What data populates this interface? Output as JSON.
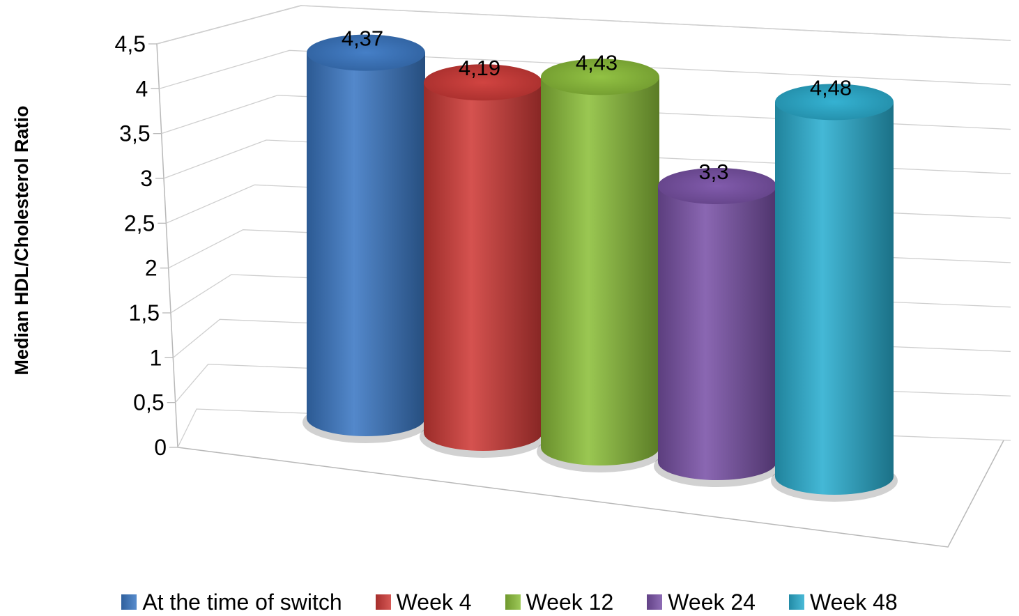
{
  "chart_data": {
    "type": "bar",
    "style": "3d-cylinder",
    "categories": [
      "At the time of switch",
      "Week 4",
      "Week 12",
      "Week 24",
      "Week 48"
    ],
    "values": [
      4.37,
      4.19,
      4.43,
      3.3,
      4.48
    ],
    "data_labels": [
      "4,37",
      "4,19",
      "4,43",
      "3,3",
      "4,48"
    ],
    "colors": [
      "#3b78c4",
      "#cf3a37",
      "#8cbf3a",
      "#7a52a8",
      "#2aaed0"
    ],
    "ylabel": "Median HDL/Cholesterol Ratio",
    "xlabel": "",
    "ylim": [
      0,
      4.5
    ],
    "yticks": [
      "0",
      "0,5",
      "1",
      "1,5",
      "2",
      "2,5",
      "3",
      "3,5",
      "4",
      "4,5"
    ],
    "grid": true,
    "legend": {
      "position": "bottom",
      "entries": [
        "At the time of switch",
        "Week 4",
        "Week 12",
        "Week 24",
        "Week 48"
      ]
    }
  }
}
